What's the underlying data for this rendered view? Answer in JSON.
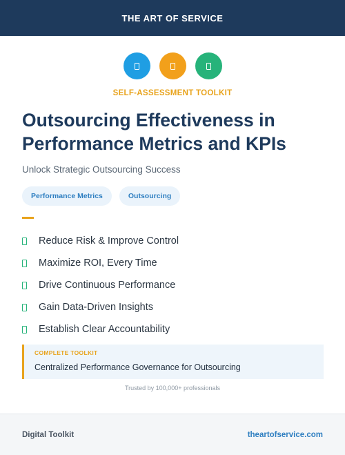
{
  "header": {
    "brand": "THE ART OF SERVICE",
    "color": "#1e3a5c"
  },
  "icons": [
    {
      "name": "document-icon",
      "color": "#1f9ee3"
    },
    {
      "name": "document-icon",
      "color": "#f2a01b"
    },
    {
      "name": "document-icon",
      "color": "#26b37a"
    }
  ],
  "kicker": "SELF-ASSESSMENT TOOLKIT",
  "title": "Outsourcing Effectiveness in Performance Metrics and KPIs",
  "subtitle": "Unlock Strategic Outsourcing Success",
  "tags": [
    "Performance Metrics",
    "Outsourcing"
  ],
  "benefits": [
    "Reduce Risk & Improve Control",
    "Maximize ROI, Every Time",
    "Drive Continuous Performance",
    "Gain Data-Driven Insights",
    "Establish Clear Accountability"
  ],
  "callout": {
    "label": "COMPLETE TOOLKIT",
    "text": "Centralized Performance Governance for Outsourcing"
  },
  "trusted": "Trusted by 100,000+ professionals",
  "footer": {
    "left": "Digital Toolkit",
    "right": "theartofservice.com"
  },
  "colors": {
    "accent": "#e8a31c",
    "link": "#2f7fc1",
    "check": "#26b37a"
  }
}
